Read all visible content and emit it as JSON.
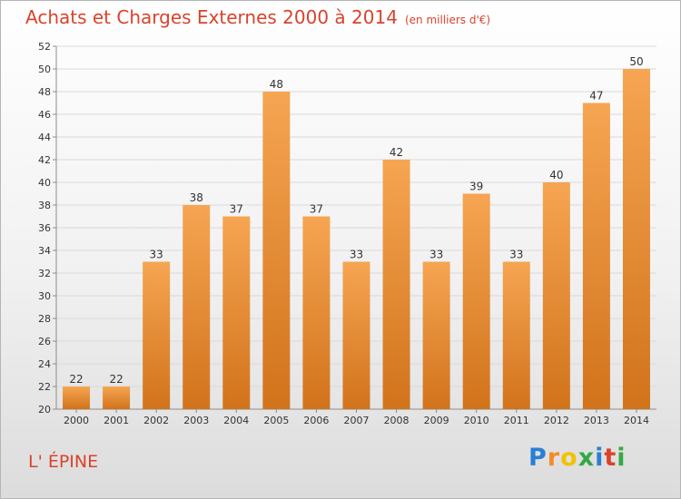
{
  "title": "Achats et Charges Externes 2000 à 2014",
  "unit_note": "(en milliers d'€)",
  "place": "L' ÉPINE",
  "logo": {
    "letters": [
      "P",
      "r",
      "o",
      "x",
      "i",
      "t",
      "i"
    ],
    "colors": [
      "#2a7fd4",
      "#f28c28",
      "#f2c200",
      "#35a845",
      "#2a7fd4",
      "#d9432c",
      "#35a845"
    ]
  },
  "colors": {
    "accent": "#d9432c",
    "bar_top": "#f6a552",
    "bar_bottom": "#d1731b",
    "grid": "#d9d9d9",
    "axis": "#8c8c8c"
  },
  "chart_data": {
    "type": "bar",
    "title": "Achats et Charges Externes 2000 à 2014",
    "xlabel": "",
    "ylabel": "",
    "categories": [
      "2000",
      "2001",
      "2002",
      "2003",
      "2004",
      "2005",
      "2006",
      "2007",
      "2008",
      "2009",
      "2010",
      "2011",
      "2012",
      "2013",
      "2014"
    ],
    "values": [
      22,
      22,
      33,
      38,
      37,
      48,
      37,
      33,
      42,
      33,
      39,
      33,
      40,
      47,
      50
    ],
    "data_labels": [
      "22",
      "22",
      "33",
      "38",
      "37",
      "48",
      "37",
      "33",
      "42",
      "33",
      "39",
      "33",
      "40",
      "47",
      "50"
    ],
    "ylim": [
      20,
      52
    ],
    "yticks": [
      20,
      22,
      24,
      26,
      28,
      30,
      32,
      34,
      36,
      38,
      40,
      42,
      44,
      46,
      48,
      50,
      52
    ],
    "grid": true,
    "legend": "none"
  }
}
